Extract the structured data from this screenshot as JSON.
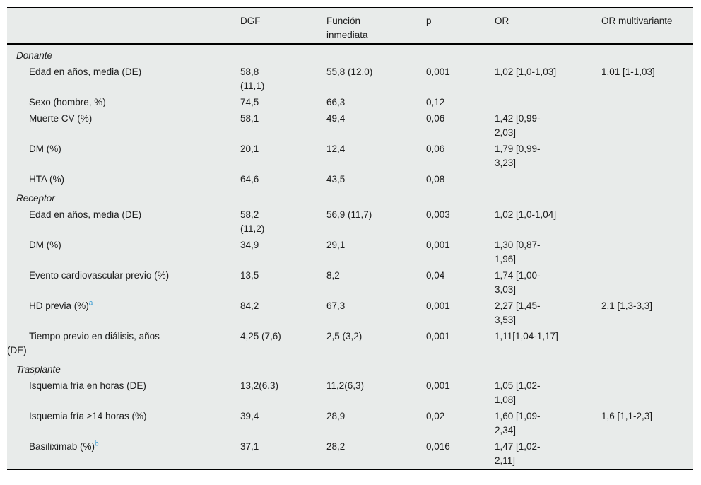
{
  "style": {
    "table_background": "#e8ebea",
    "text_color": "#1d1d1d",
    "footnote_link_color": "#3b9cd2",
    "border_color": "#000000"
  },
  "table": {
    "columns": [
      "",
      "DGF",
      "Función\ninmediata",
      "p",
      "OR",
      "OR multivariante"
    ],
    "rows": [
      {
        "type": "section",
        "label": "Donante"
      },
      {
        "type": "item",
        "label": "Edad en años, media (DE)",
        "sup": "",
        "cells": [
          "58,8\n(11,1)",
          "55,8 (12,0)",
          "0,001",
          "1,02 [1,0-1,03]",
          "1,01 [1-1,03]"
        ]
      },
      {
        "type": "item",
        "label": "Sexo (hombre, %)",
        "sup": "",
        "cells": [
          "74,5",
          "66,3",
          "0,12",
          "",
          ""
        ]
      },
      {
        "type": "item",
        "label": "Muerte CV (%)",
        "sup": "",
        "cells": [
          "58,1",
          "49,4",
          "0,06",
          "1,42 [0,99-\n2,03]",
          ""
        ]
      },
      {
        "type": "item",
        "label": "DM (%)",
        "sup": "",
        "cells": [
          "20,1",
          "12,4",
          "0,06",
          "1,79 [0,99-\n3,23]",
          ""
        ]
      },
      {
        "type": "item",
        "label": "HTA (%)",
        "sup": "",
        "cells": [
          "64,6",
          "43,5",
          "0,08",
          "",
          ""
        ]
      },
      {
        "type": "section",
        "label": "Receptor"
      },
      {
        "type": "item",
        "label": "Edad en años, media (DE)",
        "sup": "",
        "cells": [
          "58,2\n(11,2)",
          "56,9 (11,7)",
          "0,003",
          "1,02 [1,0-1,04]",
          ""
        ]
      },
      {
        "type": "item",
        "label": "DM (%)",
        "sup": "",
        "cells": [
          "34,9",
          "29,1",
          "0,001",
          "1,30 [0,87-\n1,96]",
          ""
        ]
      },
      {
        "type": "item",
        "label": "Evento cardiovascular previo (%)",
        "sup": "",
        "cells": [
          "13,5",
          "8,2",
          "0,04",
          "1,74 [1,00-\n3,03]",
          ""
        ]
      },
      {
        "type": "item",
        "label": "HD previa (%)",
        "sup": "a",
        "cells": [
          "84,2",
          "67,3",
          "0,001",
          "2,27 [1,45-\n3,53]",
          "2,1 [1,3-3,3]"
        ]
      },
      {
        "type": "item",
        "label": "Tiempo previo en diálisis, años\n(DE)",
        "sup": "",
        "cells": [
          "4,25 (7,6)",
          "2,5 (3,2)",
          "0,001",
          "1,11[1,04-1,17]",
          ""
        ]
      },
      {
        "type": "section",
        "label": "Trasplante"
      },
      {
        "type": "item",
        "label": "Isquemia fría en horas (DE)",
        "sup": "",
        "cells": [
          "13,2(6,3)",
          "11,2(6,3)",
          "0,001",
          "1,05 [1,02-\n1,08]",
          ""
        ]
      },
      {
        "type": "item",
        "label": "Isquemia fría ≥14 horas (%)",
        "sup": "",
        "cells": [
          "39,4",
          "28,9",
          "0,02",
          "1,60 [1,09-\n2,34]",
          "1,6 [1,1-2,3]"
        ]
      },
      {
        "type": "item",
        "label": "Basiliximab (%)",
        "sup": "b",
        "cells": [
          "37,1",
          "28,2",
          "0,016",
          "1,47 [1,02-\n2,11]",
          ""
        ]
      }
    ]
  }
}
